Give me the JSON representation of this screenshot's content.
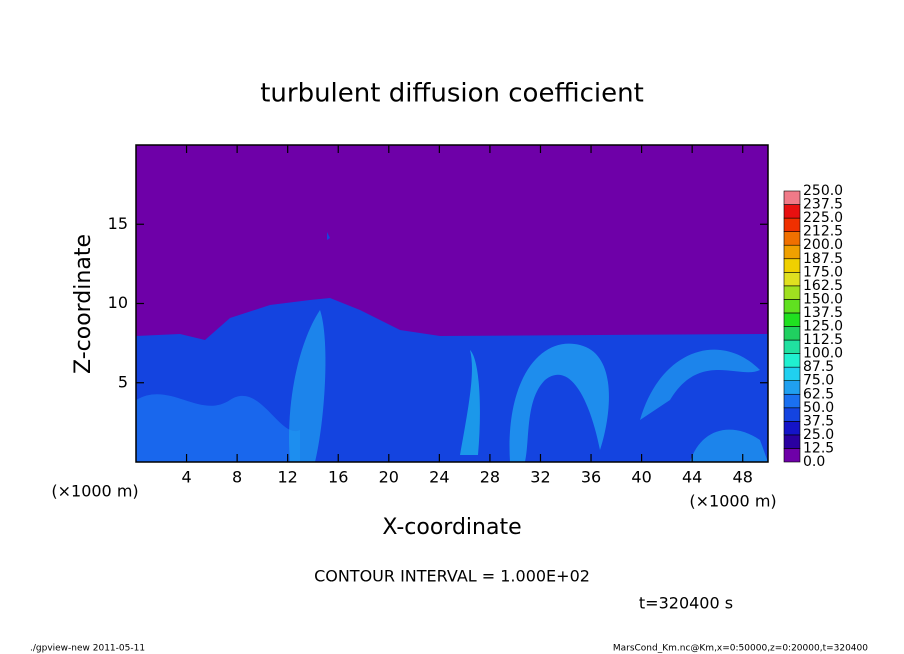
{
  "chart_data": {
    "type": "contour",
    "title": "turbulent diffusion coefficient",
    "xlabel": "X-coordinate",
    "ylabel": "Z-coordinate",
    "xunit": "(×1000 m)",
    "xlim": [
      0,
      50
    ],
    "ylim": [
      0,
      20
    ],
    "xticks": [
      4,
      8,
      12,
      16,
      20,
      24,
      28,
      32,
      36,
      40,
      44,
      48
    ],
    "yticks": [
      5,
      10,
      15
    ],
    "colorbar": {
      "levels": [
        {
          "value": 0,
          "label": "0.0"
        },
        {
          "value": 12.5,
          "label": "12.5"
        },
        {
          "value": 25,
          "label": "25.0"
        },
        {
          "value": 37.5,
          "label": "37.5"
        },
        {
          "value": 50,
          "label": "50.0"
        },
        {
          "value": 62.5,
          "label": "62.5"
        },
        {
          "value": 75,
          "label": "75.0"
        },
        {
          "value": 87.5,
          "label": "87.5"
        },
        {
          "value": 100,
          "label": "100.0"
        },
        {
          "value": 112.5,
          "label": "112.5"
        },
        {
          "value": 125,
          "label": "125.0"
        },
        {
          "value": 137.5,
          "label": "137.5"
        },
        {
          "value": 150,
          "label": "150.0"
        },
        {
          "value": 162.5,
          "label": "162.5"
        },
        {
          "value": 175,
          "label": "175.0"
        },
        {
          "value": 187.5,
          "label": "187.5"
        },
        {
          "value": 200,
          "label": "200.0"
        },
        {
          "value": 212.5,
          "label": "212.5"
        },
        {
          "value": 225,
          "label": "225.0"
        },
        {
          "value": 237.5,
          "label": "237.5"
        },
        {
          "value": 250,
          "label": "250.0"
        }
      ],
      "colors": [
        "#6e00a8",
        "#2a00a0",
        "#1414c8",
        "#1444e0",
        "#1a70f0",
        "#20a0f0",
        "#20d0f0",
        "#20f0d0",
        "#20e0a0",
        "#20d060",
        "#20e020",
        "#60e020",
        "#a0e020",
        "#e0e020",
        "#f0d000",
        "#f0a000",
        "#f07000",
        "#f03000",
        "#e81010",
        "#f07a88"
      ]
    },
    "contour_interval": "CONTOUR INTERVAL = 1.000E+02",
    "time_label": "t=320400 s",
    "footer_left": "./gpview-new   2011-05-11",
    "footer_right": "MarsCond_Km.nc@Km,x=0:50000,z=0:20000,t=320400"
  }
}
